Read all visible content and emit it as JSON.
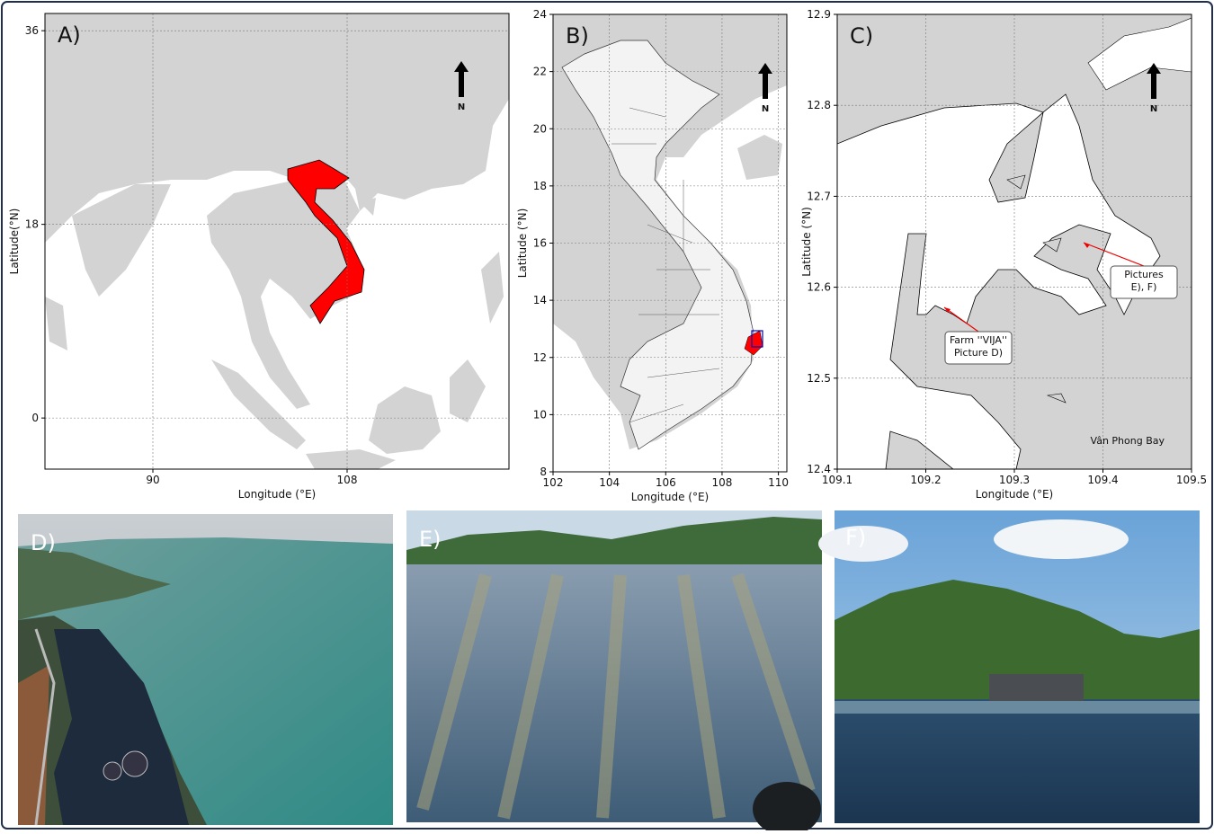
{
  "chart_data": [
    {
      "type": "map",
      "panel_label": "A)",
      "xlabel": "Longitude (°E)",
      "ylabel": "Latitude(°N)",
      "xlim": [
        80,
        123
      ],
      "ylim": [
        -4.75,
        37.6
      ],
      "xticks": [
        90,
        108
      ],
      "yticks": [
        0,
        18,
        36
      ],
      "grid": true,
      "north_label": "N"
    },
    {
      "type": "map",
      "panel_label": "B)",
      "xlabel": "Longitude (°E)",
      "ylabel": "Latitude (°N)",
      "xlim": [
        102,
        110.3
      ],
      "ylim": [
        8,
        24
      ],
      "xticks": [
        102,
        104,
        106,
        108,
        110
      ],
      "yticks": [
        8,
        10,
        12,
        14,
        16,
        18,
        20,
        22,
        24
      ],
      "grid": true,
      "north_label": "N"
    },
    {
      "type": "map",
      "panel_label": "C)",
      "xlabel": "Longitude (°E)",
      "ylabel": "Latitude (°N)",
      "xlim": [
        109.1,
        109.5
      ],
      "ylim": [
        12.4,
        12.9
      ],
      "xticks": [
        109.1,
        109.2,
        109.3,
        109.4,
        109.5
      ],
      "yticks": [
        12.4,
        12.5,
        12.6,
        12.7,
        12.8,
        12.9
      ],
      "grid": true,
      "north_label": "N",
      "annotations": [
        [
          "Farm ''VIJA''",
          "Picture D)"
        ],
        [
          "Pictures",
          "E), F)"
        ]
      ],
      "place_label": "Vân Phong Bay"
    }
  ],
  "photos": [
    "D)",
    "E)",
    "F)"
  ]
}
